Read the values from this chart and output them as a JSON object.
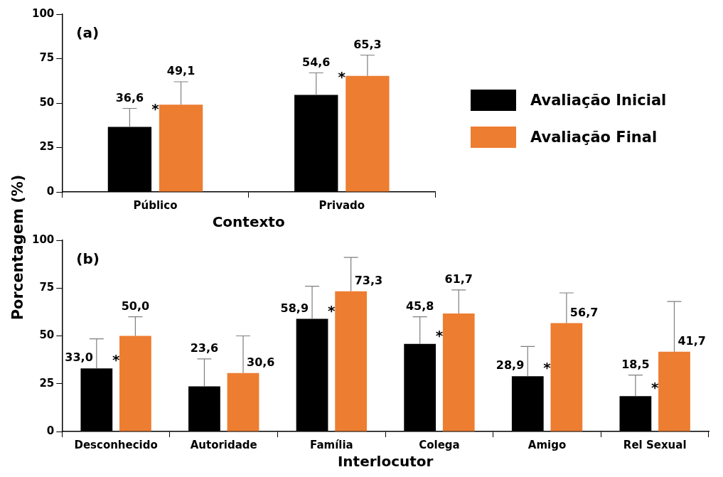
{
  "chart_data": [
    {
      "type": "bar",
      "xlabel": "Contexto",
      "ylabel": "Porcentagem (%)",
      "categories": [
        "Público",
        "Privado"
      ],
      "series": [
        {
          "name": "Avaliação Inicial",
          "color": "#000000",
          "values": [
            36.6,
            54.6
          ],
          "errors": [
            [
              36.6,
              47
            ],
            [
              54.6,
              67
            ]
          ],
          "value_labels": [
            "36,6",
            "54,6"
          ]
        },
        {
          "name": "Avaliação Final",
          "color": "#ed7d31",
          "values": [
            49.1,
            65.3
          ],
          "errors": [
            [
              49.1,
              62
            ],
            [
              65.3,
              77
            ]
          ],
          "value_labels": [
            "49,1",
            "65,3"
          ]
        }
      ],
      "ylim": [
        0,
        100
      ],
      "yticks": [
        0,
        25,
        50,
        75,
        100
      ],
      "grid": false,
      "legend": "right",
      "annotations": [
        "(a)",
        "*",
        "*"
      ]
    },
    {
      "type": "bar",
      "xlabel": "Interlocutor",
      "categories": [
        "Desconhecido",
        "Autoridade",
        "Família",
        "Colega",
        "Amigo",
        "Rel Sexual"
      ],
      "series": [
        {
          "color": "#000000",
          "values": [
            33.0,
            23.6,
            58.9,
            45.8,
            28.9,
            18.5
          ],
          "errors": [
            [
              33.0,
              48.5
            ],
            [
              23.6,
              38
            ],
            [
              58.9,
              76
            ],
            [
              45.8,
              60
            ],
            [
              28.9,
              44.5
            ],
            [
              18.5,
              29.5
            ]
          ],
          "value_labels": [
            "33,0",
            "23,6",
            "58,9",
            "45,8",
            "28,9",
            "18,5"
          ]
        },
        {
          "color": "#ed7d31",
          "values": [
            50.0,
            30.6,
            73.3,
            61.7,
            56.7,
            41.7
          ],
          "errors": [
            [
              50.0,
              60
            ],
            [
              30.6,
              50
            ],
            [
              73.3,
              91
            ],
            [
              61.7,
              74
            ],
            [
              56.7,
              72.5
            ],
            [
              41.7,
              68
            ]
          ],
          "value_labels": [
            "50,0",
            "30,6",
            "73,3",
            "61,7",
            "56,7",
            "41,7"
          ]
        }
      ],
      "ylim": [
        0,
        100
      ],
      "yticks": [
        0,
        25,
        50,
        75,
        100
      ],
      "grid": false,
      "annotations": [
        "(b)",
        {
          "text": "*",
          "x": "Desconhecido",
          "y": 33.0
        },
        {
          "text": "*",
          "x": "Família",
          "y": 58.9
        },
        {
          "text": "*",
          "x": "Colega",
          "y": 45.8
        },
        {
          "text": "*",
          "x": "Amigo",
          "y": 28.9
        },
        {
          "text": "*",
          "x": "Rel Sexual",
          "y": 18.5
        }
      ]
    }
  ]
}
